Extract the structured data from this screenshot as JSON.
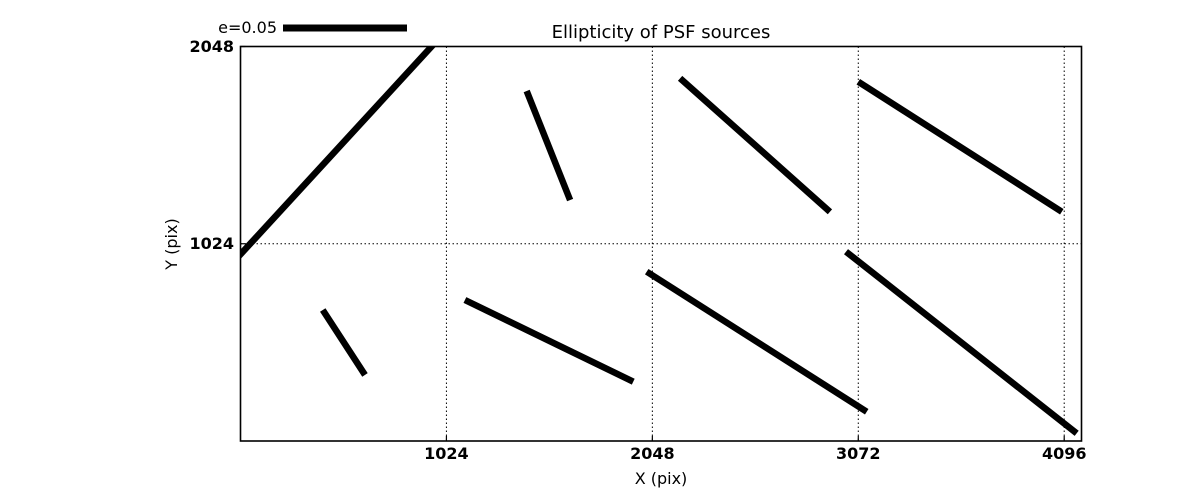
{
  "figure": {
    "title": "Ellipticity of PSF sources",
    "xlabel": "X (pix)",
    "ylabel": "Y (pix)",
    "legend_label": "e=0.05"
  },
  "chart_data": {
    "type": "line",
    "subtype": "psf-ellipticity-whisker-segments",
    "title": "Ellipticity of PSF sources",
    "xlabel": "X (pix)",
    "ylabel": "Y (pix)",
    "xlim": [
      0,
      4182
    ],
    "ylim": [
      0,
      2048
    ],
    "xticks": [
      1024,
      2048,
      3072,
      4096
    ],
    "yticks": [
      1024,
      2048
    ],
    "grid": "dotted",
    "grid_color": "#000000",
    "line_color": "#000000",
    "legend": {
      "label": "e=0.05",
      "position": "above-axes-top-left",
      "sample": "thick horizontal bar"
    },
    "segments": [
      {
        "x1": -74,
        "y1": 885,
        "x2": 1024,
        "y2": 2132
      },
      {
        "x1": 1423,
        "y1": 1817,
        "x2": 1639,
        "y2": 1251
      },
      {
        "x1": 2186,
        "y1": 1883,
        "x2": 2931,
        "y2": 1190
      },
      {
        "x1": 3072,
        "y1": 1865,
        "x2": 4084,
        "y2": 1190
      },
      {
        "x1": 409,
        "y1": 680,
        "x2": 619,
        "y2": 343
      },
      {
        "x1": 1116,
        "y1": 732,
        "x2": 1953,
        "y2": 308
      },
      {
        "x1": 2020,
        "y1": 879,
        "x2": 3114,
        "y2": 152
      },
      {
        "x1": 3011,
        "y1": 983,
        "x2": 4158,
        "y2": 40
      }
    ]
  }
}
